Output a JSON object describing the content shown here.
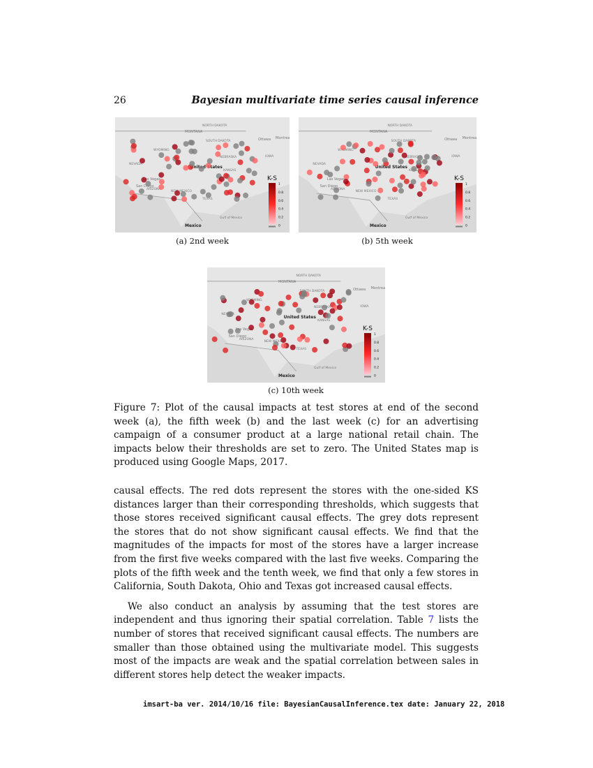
{
  "header": {
    "page_number": "26",
    "running_title": "Bayesian multivariate time series causal inference"
  },
  "figure": {
    "maps": [
      {
        "caption": "(a) 2nd week"
      },
      {
        "caption": "(b) 5th week"
      },
      {
        "caption": "(c) 10th week"
      }
    ],
    "map_labels": {
      "country": "United States",
      "mexico": "Mexico",
      "las_vegas": "Las Vegas",
      "san_diego": "San Diego",
      "gulf": "Gulf of Mexico",
      "montana": "MONTANA",
      "north_dakota": "NORTH DAKOTA",
      "south_dakota": "SOUTH DAKOTA",
      "wyoming": "WYOMING",
      "nebraska": "NEBRASKA",
      "kansas": "KANSAS",
      "nevada": "NEVADA",
      "arizona": "ARIZONA",
      "new_mexico": "NEW MEXICO",
      "texas": "TEXAS",
      "iowa": "IOWA",
      "ottawa": "Ottawa",
      "montreal": "Montreal"
    },
    "legend": {
      "title": "K-S",
      "ticks": [
        "1",
        "0.8",
        "0.6",
        "0.4",
        "0.2",
        "0"
      ],
      "colors": {
        "high": "#8b0000",
        "mid": "#ff2a2a",
        "low": "#ffc8d0",
        "insignificant": "#7f7f7f"
      }
    },
    "caption": "Figure 7: Plot of the causal impacts at test stores at end of the second week (a), the fifth week (b) and the last week (c) for an advertising campaign of a consumer product at a large national retail chain. The impacts below their thresholds are set to zero. The United States map is produced using Google Maps, 2017."
  },
  "body": {
    "p1": "causal effects. The red dots represent the stores with the one-sided KS distances larger than their corresponding thresholds, which suggests that those stores received significant causal effects. The grey dots represent the stores that do not show significant causal effects. We find that the magnitudes of the impacts for most of the stores have a larger increase from the first five weeks compared with the last five weeks. Comparing the plots of the fifth week and the tenth week, we find that only a few stores in California, South Dakota, Ohio and Texas got increased causal effects.",
    "p2_before": "We also conduct an analysis by assuming that the test stores are independent and thus ignoring their spatial correlation. Table ",
    "p2_ref": "7",
    "p2_after": " lists the number of stores that received significant causal effects. The numbers are smaller than those obtained using the multivariate model. This suggests most of the impacts are weak and the spatial correlation between sales in different stores help detect the weaker impacts."
  },
  "footer": "imsart-ba ver. 2014/10/16 file: BayesianCausalInference.tex date: January 22, 2018"
}
